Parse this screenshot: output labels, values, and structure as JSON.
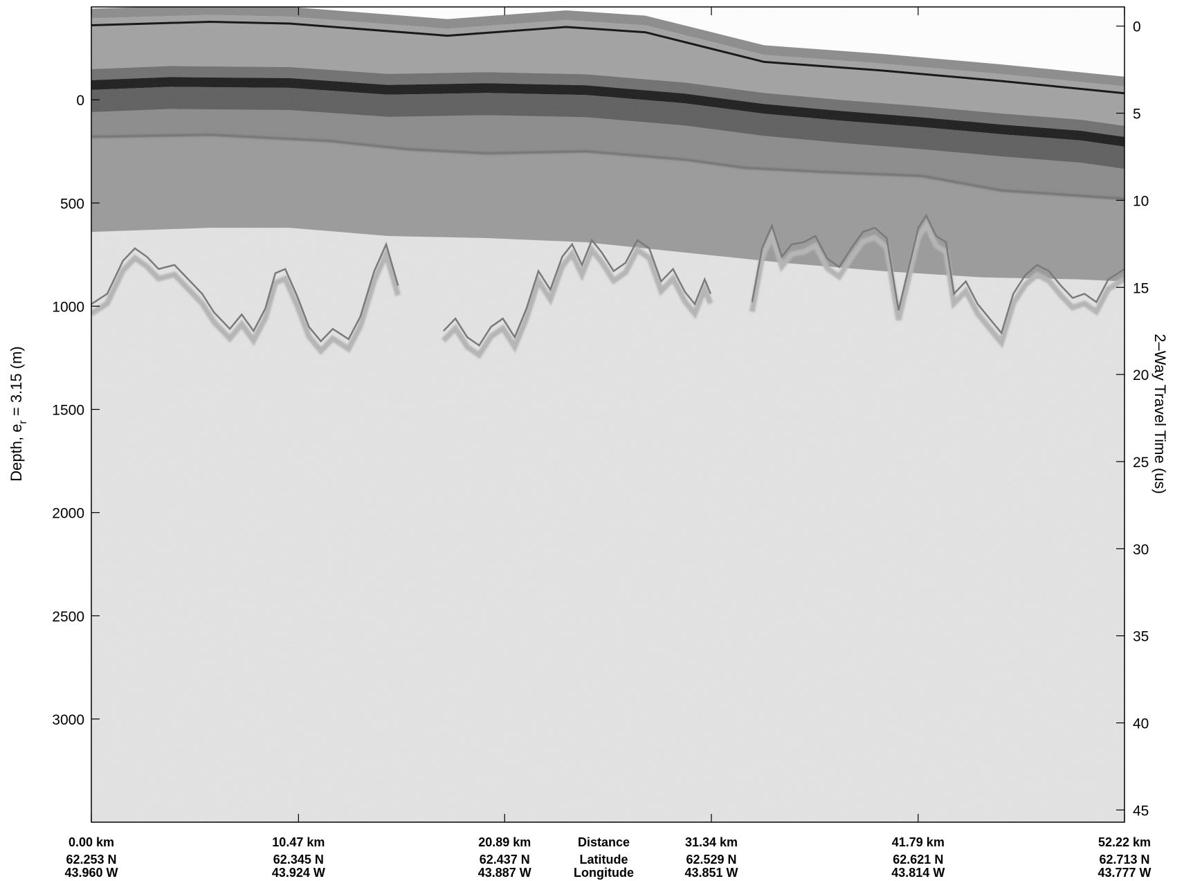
{
  "chart_data": {
    "type": "heatmap",
    "description_colormap": "grayscale",
    "left_axis": {
      "label_prefix": "Depth, e",
      "label_subscript": "r",
      "label_suffix": " = 3.15 (m)",
      "ticks": [
        0,
        500,
        1000,
        1500,
        2000,
        2500,
        3000
      ],
      "range": [
        -450,
        3500
      ]
    },
    "right_axis": {
      "label": "2–Way Travel Time (us)",
      "ticks": [
        0,
        5,
        10,
        15,
        20,
        25,
        30,
        35,
        40,
        45
      ],
      "range": [
        -1.1,
        45.7
      ]
    },
    "x_axis": {
      "range_km": [
        0.0,
        52.22
      ],
      "tick_km": [
        0.0,
        10.47,
        20.89,
        31.34,
        41.79,
        52.22
      ],
      "labels": [
        {
          "km": 0.0,
          "distance": "0.00 km",
          "latitude": "62.253 N",
          "longitude": "43.960 W"
        },
        {
          "km": 10.47,
          "distance": "10.47 km",
          "latitude": "62.345 N",
          "longitude": "43.924 W"
        },
        {
          "km": 20.89,
          "distance": "20.89 km",
          "latitude": "62.437 N",
          "longitude": "43.887 W"
        },
        {
          "km": 31.34,
          "distance": "31.34 km",
          "latitude": "62.529 N",
          "longitude": "43.851 W"
        },
        {
          "km": 41.79,
          "distance": "41.79 km",
          "latitude": "62.621 N",
          "longitude": "43.814 W"
        },
        {
          "km": 52.22,
          "distance": "52.22 km",
          "latitude": "62.713 N",
          "longitude": "43.777 W"
        }
      ],
      "row_titles": {
        "distance": "Distance",
        "latitude": "Latitude",
        "longitude": "Longitude"
      },
      "row_titles_km": 25.9
    },
    "layers": {
      "air_top_time_us": [
        [
          0,
          -1.0
        ],
        [
          6,
          -1.2
        ],
        [
          10,
          -1.1
        ],
        [
          18,
          -0.4
        ],
        [
          24,
          -0.9
        ],
        [
          28,
          -0.6
        ],
        [
          34,
          1.1
        ],
        [
          40,
          1.6
        ],
        [
          46,
          2.2
        ],
        [
          52.22,
          2.9
        ]
      ],
      "surface_depth_m": [
        [
          0,
          -95
        ],
        [
          4,
          -110
        ],
        [
          10,
          -105
        ],
        [
          15,
          -72
        ],
        [
          20,
          -80
        ],
        [
          25,
          -70
        ],
        [
          30,
          -30
        ],
        [
          34,
          20
        ],
        [
          38,
          55
        ],
        [
          42,
          85
        ],
        [
          46,
          120
        ],
        [
          50,
          150
        ],
        [
          52.22,
          180
        ]
      ],
      "internal_layer_depth_m": [
        [
          0,
          180
        ],
        [
          6,
          170
        ],
        [
          12,
          200
        ],
        [
          16,
          240
        ],
        [
          20,
          260
        ],
        [
          25,
          250
        ],
        [
          30,
          290
        ],
        [
          33,
          330
        ],
        [
          37,
          350
        ],
        [
          42,
          370
        ],
        [
          46,
          440
        ],
        [
          52.22,
          480
        ]
      ],
      "noise_floor_depth_m": [
        [
          0,
          640
        ],
        [
          6,
          620
        ],
        [
          10,
          620
        ],
        [
          15,
          660
        ],
        [
          20,
          670
        ],
        [
          25,
          690
        ],
        [
          30,
          740
        ],
        [
          35,
          790
        ],
        [
          40,
          830
        ],
        [
          45,
          860
        ],
        [
          50,
          870
        ],
        [
          52.22,
          880
        ]
      ],
      "bed_depth_m": [
        [
          0,
          990
        ],
        [
          0.8,
          940
        ],
        [
          1.6,
          780
        ],
        [
          2.2,
          720
        ],
        [
          2.8,
          760
        ],
        [
          3.4,
          820
        ],
        [
          4.2,
          800
        ],
        [
          5.0,
          880
        ],
        [
          5.6,
          940
        ],
        [
          6.2,
          1030
        ],
        [
          7.0,
          1110
        ],
        [
          7.6,
          1040
        ],
        [
          8.2,
          1120
        ],
        [
          8.8,
          1010
        ],
        [
          9.3,
          840
        ],
        [
          9.8,
          820
        ],
        [
          10.4,
          950
        ],
        [
          11.0,
          1100
        ],
        [
          11.6,
          1170
        ],
        [
          12.2,
          1110
        ],
        [
          13.0,
          1160
        ],
        [
          13.6,
          1050
        ],
        [
          14.3,
          830
        ],
        [
          14.9,
          700
        ],
        [
          15.5,
          900
        ],
        [
          17.8,
          1120
        ],
        [
          18.4,
          1060
        ],
        [
          19.0,
          1150
        ],
        [
          19.6,
          1190
        ],
        [
          20.2,
          1100
        ],
        [
          20.8,
          1060
        ],
        [
          21.4,
          1150
        ],
        [
          22.0,
          1010
        ],
        [
          22.6,
          830
        ],
        [
          23.2,
          920
        ],
        [
          23.8,
          760
        ],
        [
          24.3,
          700
        ],
        [
          24.8,
          800
        ],
        [
          25.3,
          680
        ],
        [
          25.8,
          740
        ],
        [
          26.4,
          830
        ],
        [
          27.0,
          790
        ],
        [
          27.6,
          680
        ],
        [
          28.2,
          720
        ],
        [
          28.8,
          880
        ],
        [
          29.4,
          820
        ],
        [
          30.0,
          930
        ],
        [
          30.5,
          990
        ],
        [
          31.0,
          870
        ],
        [
          31.3,
          940
        ],
        [
          33.4,
          980
        ],
        [
          33.9,
          720
        ],
        [
          34.4,
          610
        ],
        [
          34.9,
          760
        ],
        [
          35.4,
          700
        ],
        [
          36.0,
          690
        ],
        [
          36.6,
          660
        ],
        [
          37.2,
          770
        ],
        [
          37.8,
          810
        ],
        [
          38.4,
          720
        ],
        [
          39.0,
          640
        ],
        [
          39.6,
          620
        ],
        [
          40.2,
          670
        ],
        [
          40.8,
          1020
        ],
        [
          41.3,
          820
        ],
        [
          41.8,
          620
        ],
        [
          42.2,
          560
        ],
        [
          42.7,
          660
        ],
        [
          43.2,
          690
        ],
        [
          43.6,
          940
        ],
        [
          44.2,
          880
        ],
        [
          44.8,
          990
        ],
        [
          45.4,
          1060
        ],
        [
          46.0,
          1130
        ],
        [
          46.6,
          940
        ],
        [
          47.2,
          850
        ],
        [
          47.8,
          800
        ],
        [
          48.4,
          830
        ],
        [
          49.0,
          900
        ],
        [
          49.6,
          960
        ],
        [
          50.2,
          940
        ],
        [
          50.8,
          980
        ],
        [
          51.4,
          870
        ],
        [
          52.22,
          820
        ]
      ]
    }
  }
}
